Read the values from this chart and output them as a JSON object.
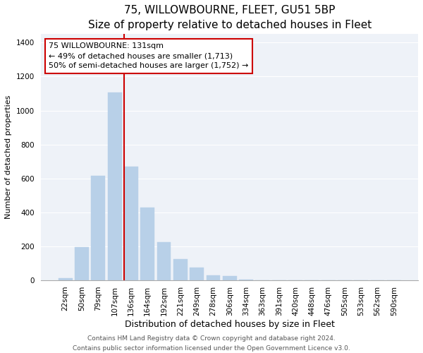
{
  "title": "75, WILLOWBOURNE, FLEET, GU51 5BP",
  "subtitle": "Size of property relative to detached houses in Fleet",
  "xlabel": "Distribution of detached houses by size in Fleet",
  "ylabel": "Number of detached properties",
  "bar_labels": [
    "22sqm",
    "50sqm",
    "79sqm",
    "107sqm",
    "136sqm",
    "164sqm",
    "192sqm",
    "221sqm",
    "249sqm",
    "278sqm",
    "306sqm",
    "334sqm",
    "363sqm",
    "391sqm",
    "420sqm",
    "448sqm",
    "476sqm",
    "505sqm",
    "533sqm",
    "562sqm",
    "590sqm"
  ],
  "bar_values": [
    15,
    195,
    615,
    1105,
    670,
    430,
    225,
    125,
    75,
    30,
    25,
    5,
    3,
    0,
    0,
    0,
    0,
    0,
    0,
    0,
    0
  ],
  "bar_color": "#b8d0e8",
  "bar_edge_color": "#b8d0e8",
  "vline_color": "#cc0000",
  "vline_x_index": 4,
  "annotation_title": "75 WILLOWBOURNE: 131sqm",
  "annotation_line1": "← 49% of detached houses are smaller (1,713)",
  "annotation_line2": "50% of semi-detached houses are larger (1,752) →",
  "box_edge_color": "#cc0000",
  "ylim": [
    0,
    1450
  ],
  "yticks": [
    0,
    200,
    400,
    600,
    800,
    1000,
    1200,
    1400
  ],
  "footer1": "Contains HM Land Registry data © Crown copyright and database right 2024.",
  "footer2": "Contains public sector information licensed under the Open Government Licence v3.0.",
  "bg_color": "#ffffff",
  "plot_bg_color": "#eef2f8",
  "grid_color": "#ffffff",
  "title_fontsize": 11,
  "subtitle_fontsize": 9.5,
  "xlabel_fontsize": 9,
  "ylabel_fontsize": 8,
  "tick_fontsize": 7.5,
  "annotation_fontsize": 8,
  "footer_fontsize": 6.5
}
